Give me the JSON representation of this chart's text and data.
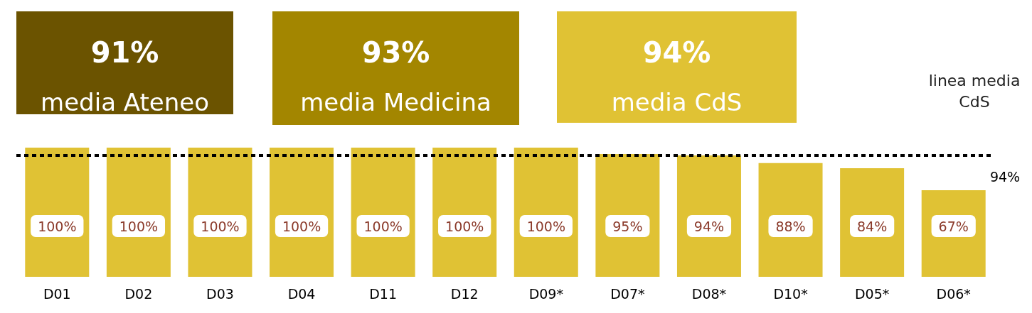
{
  "chart_data": {
    "type": "bar",
    "categories": [
      "D01",
      "D02",
      "D03",
      "D04",
      "D11",
      "D12",
      "D09*",
      "D07*",
      "D08*",
      "D10*",
      "D05*",
      "D06*"
    ],
    "values": [
      100,
      100,
      100,
      100,
      100,
      100,
      100,
      95,
      94,
      88,
      84,
      67
    ],
    "value_labels": [
      "100%",
      "100%",
      "100%",
      "100%",
      "100%",
      "100%",
      "100%",
      "95%",
      "94%",
      "88%",
      "84%",
      "67%"
    ],
    "color": "#e0c234",
    "ylim": [
      0,
      100
    ],
    "ref_lines": [
      {
        "axis": "y",
        "value": 94,
        "label": "linea media CdS",
        "line_style": "dashed",
        "color": "#000000"
      }
    ],
    "annotations": [
      "91%",
      "media Ateneo",
      "93%",
      "media Medicina",
      "94%",
      "media CdS",
      "94%"
    ]
  }
}
